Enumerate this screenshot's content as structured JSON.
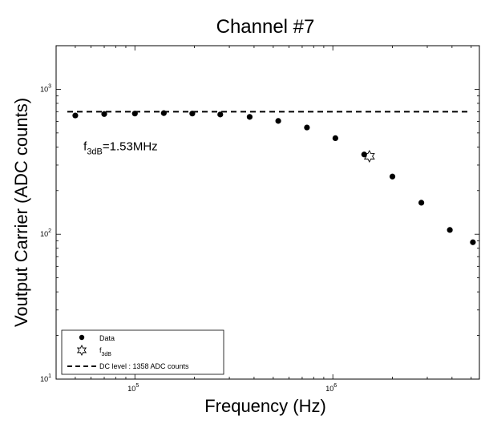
{
  "chart_data": {
    "type": "scatter",
    "title": "Channel #7",
    "xlabel": "Frequency (Hz)",
    "ylabel": "Voutput Carrier (ADC counts)",
    "xscale": "log",
    "yscale": "log",
    "xlim": [
      40000,
      5500000
    ],
    "ylim": [
      10,
      2000
    ],
    "x_ticks": [
      {
        "value": 100000,
        "base": "10",
        "exp": "5"
      },
      {
        "value": 1000000,
        "base": "10",
        "exp": "6"
      }
    ],
    "y_ticks": [
      {
        "value": 10,
        "base": "10",
        "exp": "1"
      },
      {
        "value": 100,
        "base": "10",
        "exp": "2"
      },
      {
        "value": 1000,
        "base": "10",
        "exp": "3"
      }
    ],
    "grid": false,
    "series": [
      {
        "name": "Data",
        "marker": "filled-circle",
        "x": [
          50000,
          70000,
          100000,
          140000,
          195000,
          270000,
          380000,
          530000,
          740000,
          1030000,
          1440000,
          2000000,
          2800000,
          3900000,
          5100000
        ],
        "y": [
          660,
          675,
          680,
          685,
          680,
          670,
          645,
          605,
          545,
          460,
          355,
          250,
          165,
          107,
          88
        ]
      },
      {
        "name": "f",
        "name_sub": "3dB",
        "marker": "star",
        "x": [
          1530000
        ],
        "y": [
          345
        ]
      },
      {
        "name": "DC level : 1358 ADC counts",
        "line_style": "dashed",
        "y_constant": 700
      }
    ],
    "annotation": {
      "prefix": "f",
      "sub": "3dB",
      "value": "=1.53MHz",
      "x": 55000,
      "y": 380
    },
    "legend_position": "bottom-left"
  },
  "colors": {
    "marks": "#000000",
    "background": "#ffffff"
  }
}
